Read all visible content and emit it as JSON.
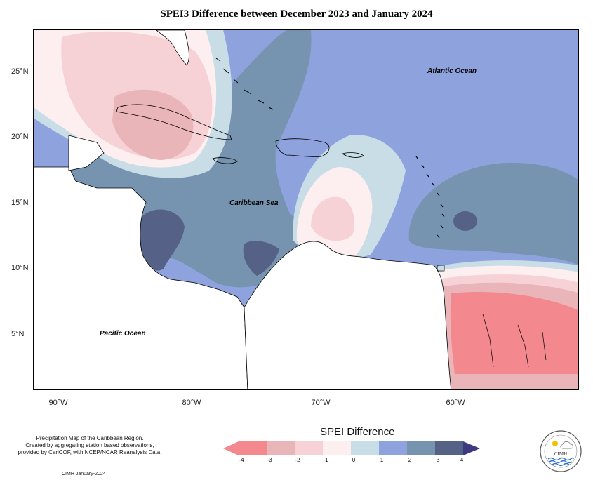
{
  "title": "SPEI3 Difference between December 2023 and January 2024",
  "map": {
    "lat_ticks": [
      "25°N",
      "20°N",
      "15°N",
      "10°N",
      "5°N"
    ],
    "lon_ticks": [
      "90°W",
      "80°W",
      "70°W",
      "60°W"
    ],
    "ocean_labels": {
      "atlantic": "Atlantic Ocean",
      "caribbean": "Caribbean Sea",
      "pacific": "Pacific Ocean"
    },
    "land_color": "#ffffff",
    "coast_color": "#000000"
  },
  "legend": {
    "title": "SPEI Difference",
    "labels": [
      "-4",
      "-3",
      "-2",
      "-1",
      "0",
      "1",
      "2",
      "3",
      "4"
    ],
    "colors": [
      "#f3888e",
      "#eab5b8",
      "#f6d2d6",
      "#fdeef0",
      "#c8dde6",
      "#8ea2de",
      "#7694b0",
      "#566187",
      "#3f3a80"
    ]
  },
  "notes": {
    "line1": "Precipitation Map of the Caribbean Region.",
    "line2": "Created by aggregating station based observations,",
    "line3": "provided by CariCOF, with NCEP/NCAR Reanalysis Data.",
    "credit": "CIMH January-2024"
  },
  "logo": {
    "text": "CIMH",
    "icon": "cimh-logo"
  }
}
